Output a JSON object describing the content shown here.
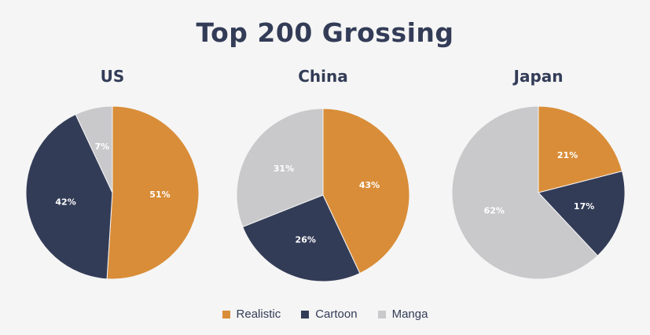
{
  "title": "Top 200 Grossing",
  "colors": {
    "Realistic": "#d98d38",
    "Cartoon": "#333c57",
    "Manga": "#c9c9cb"
  },
  "legend": [
    "Realistic",
    "Cartoon",
    "Manga"
  ],
  "chart_data": [
    {
      "type": "pie",
      "title": "US",
      "categories": [
        "Realistic",
        "Cartoon",
        "Manga"
      ],
      "values": [
        51,
        42,
        7
      ],
      "labels": [
        "51%",
        "42%",
        "7%"
      ]
    },
    {
      "type": "pie",
      "title": "China",
      "categories": [
        "Realistic",
        "Cartoon",
        "Manga"
      ],
      "values": [
        43,
        26,
        31
      ],
      "labels": [
        "43%",
        "26%",
        "31%"
      ]
    },
    {
      "type": "pie",
      "title": "Japan",
      "categories": [
        "Realistic",
        "Cartoon",
        "Manga"
      ],
      "values": [
        21,
        17,
        62
      ],
      "labels": [
        "21%",
        "17%",
        "62%"
      ]
    }
  ]
}
